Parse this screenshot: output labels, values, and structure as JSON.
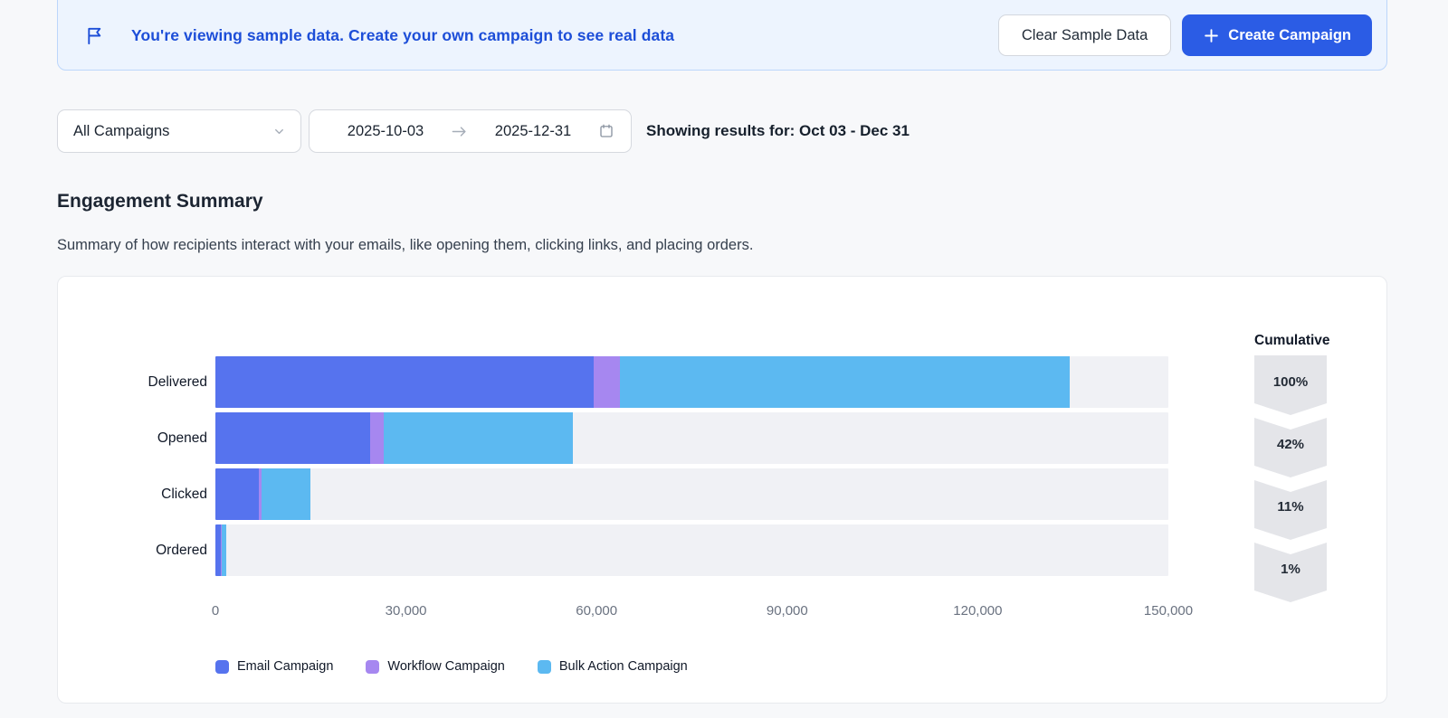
{
  "banner": {
    "message": "You're viewing sample data. Create your own campaign to see real data",
    "clear_button": "Clear Sample Data",
    "create_button": "Create Campaign"
  },
  "filters": {
    "campaign_select": "All Campaigns",
    "date_start": "2025-10-03",
    "date_end": "2025-12-31",
    "results_label": "Showing results for: Oct 03 - Dec 31"
  },
  "section": {
    "title": "Engagement Summary",
    "description": "Summary of how recipients interact with your emails, like opening them, clicking links, and placing orders."
  },
  "icons": {
    "banner": "flag-icon",
    "select": "chevron-down-icon",
    "date_separator": "arrow-right-icon",
    "date": "calendar-icon",
    "create": "plus-icon"
  },
  "colors": {
    "accent": "#2b5ce5",
    "banner_bg": "#edf4fe",
    "banner_text": "#1d4ed8",
    "track": "#f0f1f5",
    "badge": "#e4e5e9"
  },
  "chart_data": {
    "type": "bar",
    "orientation": "horizontal",
    "stacked": true,
    "title": "Engagement Summary",
    "categories": [
      "Delivered",
      "Opened",
      "Clicked",
      "Ordered"
    ],
    "series": [
      {
        "name": "Email Campaign",
        "color": "#5673ee",
        "values": [
          59500,
          24300,
          6800,
          800
        ]
      },
      {
        "name": "Workflow Campaign",
        "color": "#a687f0",
        "values": [
          4200,
          2200,
          500,
          150
        ]
      },
      {
        "name": "Bulk Action Campaign",
        "color": "#5cb9f1",
        "values": [
          70800,
          29800,
          7700,
          800
        ]
      }
    ],
    "xlim": [
      0,
      150000
    ],
    "x_ticks": [
      0,
      30000,
      60000,
      90000,
      120000,
      150000
    ],
    "x_tick_labels": [
      "0",
      "30,000",
      "60,000",
      "90,000",
      "120,000",
      "150,000"
    ],
    "grid": false,
    "legend_position": "bottom",
    "cumulative": {
      "label": "Cumulative",
      "values": [
        "100%",
        "42%",
        "11%",
        "1%"
      ]
    }
  }
}
